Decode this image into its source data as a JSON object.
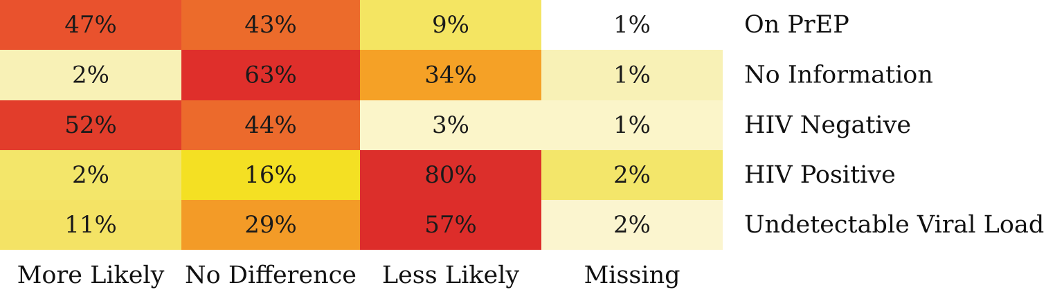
{
  "chart_data": {
    "type": "heatmap",
    "columns": [
      "More Likely",
      "No Difference",
      "Less Likely",
      "Missing"
    ],
    "rows": [
      {
        "label": "On PrEP",
        "values": [
          "47%",
          "43%",
          "9%",
          "1%"
        ],
        "colors": [
          "#e9522d",
          "#ec6b2b",
          "#f4e562",
          "#ffffff"
        ]
      },
      {
        "label": "No Information",
        "values": [
          "2%",
          "63%",
          "34%",
          "1%"
        ],
        "colors": [
          "#f8f1b6",
          "#df2f2b",
          "#f5a126",
          "#f8f1b6"
        ]
      },
      {
        "label": "HIV Negative",
        "values": [
          "52%",
          "44%",
          "3%",
          "1%"
        ],
        "colors": [
          "#e23d2b",
          "#ec6a2c",
          "#fbf5c9",
          "#fbf5c9"
        ]
      },
      {
        "label": "HIV Positive",
        "values": [
          "2%",
          "16%",
          "80%",
          "2%"
        ],
        "colors": [
          "#f3e66a",
          "#f4e023",
          "#dc2f2b",
          "#f3e66a"
        ]
      },
      {
        "label": "Undetectable Viral Load",
        "values": [
          "11%",
          "29%",
          "57%",
          "2%"
        ],
        "colors": [
          "#f4e365",
          "#f39b27",
          "#dd2d2a",
          "#fbf5cf"
        ]
      }
    ]
  }
}
